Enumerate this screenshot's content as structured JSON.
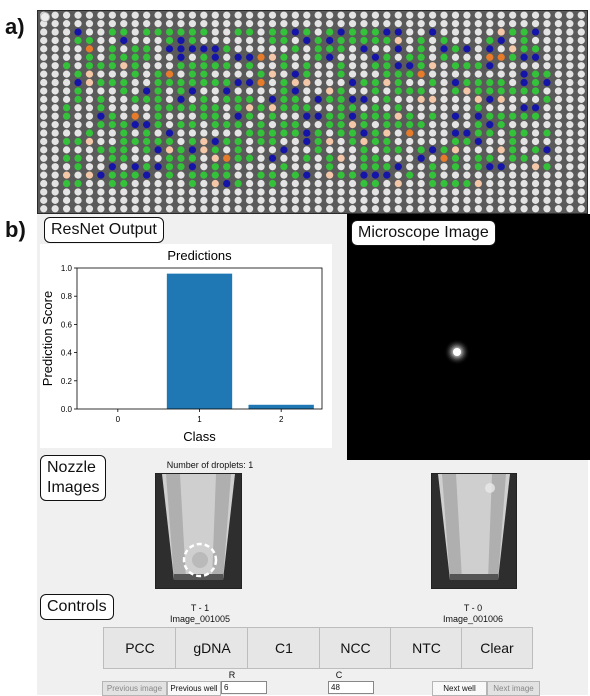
{
  "labels": {
    "a": "a)",
    "b": "b)"
  },
  "plate": {
    "rows": 24,
    "cols": 48,
    "colors": {
      "empty": "#e4e4e4",
      "green": "#33c23a",
      "blue": "#1414a8",
      "peach": "#f3c7a8",
      "orange": "#e67b2b",
      "bg": "#5a5a5a"
    }
  },
  "resnet_label": "ResNet Output",
  "microscope_label": "Microscope Image",
  "nozzle_label_1": "Nozzle",
  "nozzle_label_2": "Images",
  "controls_label": "Controls",
  "chart_data": {
    "type": "bar",
    "title": "Predictions",
    "xlabel": "Class",
    "ylabel": "Prediction Score",
    "categories": [
      "0",
      "1",
      "2"
    ],
    "values": [
      0.0,
      0.96,
      0.03
    ],
    "ylim": [
      0,
      1.0
    ],
    "yticks": [
      "0.0",
      "0.2",
      "0.4",
      "0.6",
      "0.8",
      "1.0"
    ],
    "grid": false,
    "color": "#1f77b4"
  },
  "droplets_text": "Number of droplets: 1",
  "nozzle_left": {
    "time": "T - 1",
    "image": "Image_001005"
  },
  "nozzle_right": {
    "time": "T - 0",
    "image": "Image_001006"
  },
  "controls": {
    "buttons": [
      "PCC",
      "gDNA",
      "C1",
      "NCC",
      "NTC",
      "Clear"
    ]
  },
  "nav": {
    "row_label": "R",
    "col_label": "C",
    "previous_image": "Previous image",
    "previous_well": "Previous well",
    "row_value": "6",
    "col_value": "48",
    "next_well": "Next well",
    "next_image": "Next image"
  }
}
